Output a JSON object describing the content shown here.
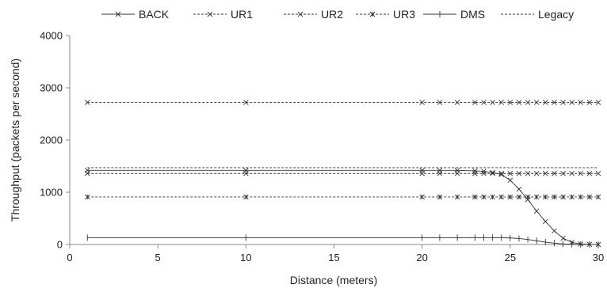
{
  "chart_data": {
    "type": "line",
    "xlabel": "Distance (meters)",
    "ylabel": "Throughput (packets per second)",
    "xlim": [
      0,
      30
    ],
    "ylim": [
      0,
      4000
    ],
    "x_ticks": [
      0,
      5,
      10,
      15,
      20,
      25,
      30
    ],
    "y_ticks": [
      0,
      1000,
      2000,
      3000,
      4000
    ],
    "grid": false,
    "legend_position": "top",
    "x": [
      1,
      10,
      20,
      21,
      22,
      23,
      23.5,
      24,
      24.5,
      25,
      25.5,
      26,
      26.5,
      27,
      27.5,
      28,
      28.5,
      29,
      29.5,
      30
    ],
    "series": [
      {
        "name": "BACK",
        "line": "solid",
        "marker": "x",
        "values": [
          1420,
          1420,
          1420,
          1420,
          1420,
          1410,
          1400,
          1380,
          1340,
          1230,
          1060,
          860,
          640,
          440,
          260,
          120,
          40,
          10,
          3,
          0
        ]
      },
      {
        "name": "UR1",
        "line": "dashed",
        "marker": "x",
        "values": [
          2720,
          2720,
          2720,
          2720,
          2720,
          2720,
          2720,
          2720,
          2720,
          2720,
          2720,
          2720,
          2720,
          2720,
          2720,
          2720,
          2720,
          2720,
          2720,
          2720
        ]
      },
      {
        "name": "UR2",
        "line": "dashed",
        "marker": "x",
        "values": [
          1360,
          1360,
          1360,
          1360,
          1360,
          1360,
          1360,
          1360,
          1360,
          1360,
          1360,
          1360,
          1360,
          1360,
          1360,
          1360,
          1360,
          1360,
          1360,
          1360
        ]
      },
      {
        "name": "UR3",
        "line": "dashed",
        "marker": "star",
        "values": [
          910,
          910,
          910,
          910,
          910,
          910,
          910,
          910,
          910,
          910,
          910,
          910,
          910,
          910,
          910,
          910,
          910,
          910,
          910,
          910
        ]
      },
      {
        "name": "DMS",
        "line": "solid",
        "marker": "plus",
        "values": [
          130,
          130,
          130,
          130,
          130,
          130,
          130,
          130,
          130,
          125,
          115,
          95,
          70,
          45,
          25,
          10,
          4,
          1,
          0,
          0
        ]
      },
      {
        "name": "Legacy",
        "line": "dashed",
        "marker": "none",
        "values": [
          1470,
          1470,
          1470,
          1470,
          1470,
          1470,
          1470,
          1470,
          1470,
          1470,
          1470,
          1470,
          1470,
          1470,
          1470,
          1470,
          1470,
          1470,
          1470,
          1470
        ]
      }
    ]
  }
}
